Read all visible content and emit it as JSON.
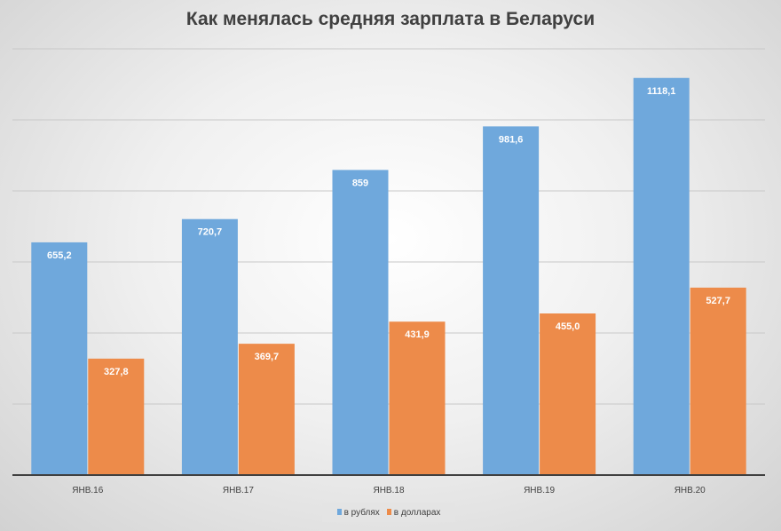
{
  "chart_data": {
    "type": "bar",
    "title": "Как менялась средняя зарплата в Беларуси",
    "categories": [
      "ЯНВ.16",
      "ЯНВ.17",
      "ЯНВ.18",
      "ЯНВ.19",
      "ЯНВ.20"
    ],
    "series": [
      {
        "name": "в рублях",
        "color": "#6fa8dc",
        "values": [
          655.2,
          720.7,
          859,
          981.6,
          1118.1
        ],
        "labels": [
          "655,2",
          "720,7",
          "859",
          "981,6",
          "1118,1"
        ]
      },
      {
        "name": "в долларах",
        "color": "#ed8b4a",
        "values": [
          327.8,
          369.7,
          431.9,
          455.0,
          527.7
        ],
        "labels": [
          "327,8",
          "369,7",
          "431,9",
          "455,0",
          "527,7"
        ]
      }
    ],
    "xlabel": "",
    "ylabel": "",
    "ylim": [
      0,
      1200
    ],
    "ytick_step": 200,
    "grid": true,
    "legend_position": "bottom"
  }
}
